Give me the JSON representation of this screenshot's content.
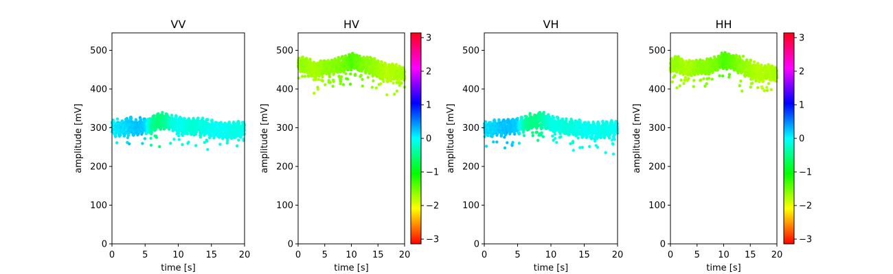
{
  "chart_data": [
    {
      "type": "scatter",
      "title": "VV",
      "xlabel": "time [s]",
      "ylabel": "amplitude [mV]",
      "xlim": [
        0,
        20
      ],
      "ylim": [
        0,
        545
      ],
      "xticks": [
        "0",
        "5",
        "10",
        "15",
        "20"
      ],
      "yticks": [
        "0",
        "100",
        "200",
        "300",
        "400",
        "500"
      ],
      "band": {
        "t": [
          0,
          1,
          2,
          3,
          4,
          5,
          6,
          7,
          8,
          9,
          10,
          11,
          12,
          13,
          14,
          15,
          16,
          17,
          18,
          19,
          20
        ],
        "center": [
          298,
          300,
          302,
          304,
          303,
          305,
          308,
          316,
          318,
          312,
          305,
          304,
          303,
          304,
          301,
          297,
          294,
          293,
          294,
          295,
          296
        ],
        "half_width": [
          18,
          20,
          20,
          21,
          19,
          20,
          18,
          20,
          19,
          18,
          22,
          20,
          19,
          18,
          20,
          22,
          20,
          19,
          20,
          19,
          18
        ],
        "phase": [
          0.05,
          0.1,
          0.15,
          0.2,
          0.25,
          0.2,
          -0.4,
          -0.55,
          -0.45,
          -0.15,
          -0.05,
          -0.1,
          -0.2,
          -0.15,
          -0.1,
          -0.05,
          -0.05,
          -0.05,
          -0.1,
          -0.1,
          -0.05
        ]
      },
      "colorbar": false
    },
    {
      "type": "scatter",
      "title": "HV",
      "xlabel": "time [s]",
      "ylabel": "amplitude [mV]",
      "xlim": [
        0,
        20
      ],
      "ylim": [
        0,
        545
      ],
      "xticks": [
        "0",
        "5",
        "10",
        "15",
        "20"
      ],
      "yticks": [
        "0",
        "100",
        "200",
        "300",
        "400",
        "500"
      ],
      "band": {
        "t": [
          0,
          1,
          2,
          3,
          4,
          5,
          6,
          7,
          8,
          9,
          10,
          11,
          12,
          13,
          14,
          15,
          16,
          17,
          18,
          19,
          20
        ],
        "center": [
          462,
          465,
          458,
          450,
          452,
          456,
          455,
          458,
          462,
          466,
          470,
          472,
          466,
          462,
          458,
          450,
          445,
          440,
          445,
          442,
          440
        ],
        "half_width": [
          15,
          18,
          18,
          20,
          18,
          16,
          17,
          18,
          18,
          17,
          20,
          18,
          18,
          20,
          22,
          20,
          22,
          20,
          18,
          16,
          14
        ],
        "phase": [
          -1.7,
          -1.65,
          -1.7,
          -1.75,
          -1.7,
          -1.65,
          -1.6,
          -1.6,
          -1.55,
          -1.5,
          -1.35,
          -1.45,
          -1.55,
          -1.6,
          -1.65,
          -1.7,
          -1.75,
          -1.8,
          -1.75,
          -1.75,
          -1.7
        ]
      },
      "colorbar": true,
      "colorbar_ticks": [
        "3",
        "2",
        "1",
        "0",
        "−1",
        "−2",
        "−3"
      ]
    },
    {
      "type": "scatter",
      "title": "VH",
      "xlabel": "time [s]",
      "ylabel": "amplitude [mV]",
      "xlim": [
        0,
        20
      ],
      "ylim": [
        0,
        545
      ],
      "xticks": [
        "0",
        "5",
        "10",
        "15",
        "20"
      ],
      "yticks": [
        "0",
        "100",
        "200",
        "300",
        "400",
        "500"
      ],
      "band": {
        "t": [
          0,
          1,
          2,
          3,
          4,
          5,
          6,
          7,
          8,
          9,
          10,
          11,
          12,
          13,
          14,
          15,
          16,
          17,
          18,
          19,
          20
        ],
        "center": [
          296,
          298,
          300,
          302,
          304,
          305,
          308,
          316,
          320,
          318,
          310,
          306,
          304,
          302,
          300,
          296,
          293,
          292,
          294,
          296,
          298
        ],
        "half_width": [
          16,
          18,
          19,
          20,
          18,
          19,
          18,
          19,
          19,
          18,
          20,
          19,
          18,
          19,
          20,
          21,
          20,
          19,
          20,
          19,
          18
        ],
        "phase": [
          0.1,
          0.15,
          0.2,
          0.25,
          0.25,
          0.2,
          -0.35,
          -0.5,
          -0.5,
          -0.3,
          -0.1,
          -0.1,
          -0.15,
          -0.15,
          -0.1,
          -0.05,
          -0.05,
          -0.05,
          -0.1,
          -0.05,
          -0.05
        ]
      },
      "colorbar": false
    },
    {
      "type": "scatter",
      "title": "HH",
      "xlabel": "time [s]",
      "ylabel": "amplitude [mV]",
      "xlim": [
        0,
        20
      ],
      "ylim": [
        0,
        545
      ],
      "xticks": [
        "0",
        "5",
        "10",
        "15",
        "20"
      ],
      "yticks": [
        "0",
        "100",
        "200",
        "300",
        "400",
        "500"
      ],
      "band": {
        "t": [
          0,
          1,
          2,
          3,
          4,
          5,
          6,
          7,
          8,
          9,
          10,
          11,
          12,
          13,
          14,
          15,
          16,
          17,
          18,
          19,
          20
        ],
        "center": [
          462,
          466,
          460,
          452,
          454,
          457,
          456,
          458,
          462,
          468,
          472,
          474,
          468,
          462,
          458,
          452,
          446,
          440,
          444,
          442,
          440
        ],
        "half_width": [
          15,
          18,
          18,
          20,
          18,
          16,
          17,
          18,
          18,
          17,
          20,
          18,
          18,
          20,
          22,
          20,
          22,
          20,
          18,
          16,
          14
        ],
        "phase": [
          -1.7,
          -1.65,
          -1.7,
          -1.75,
          -1.7,
          -1.65,
          -1.6,
          -1.6,
          -1.55,
          -1.5,
          -1.35,
          -1.4,
          -1.5,
          -1.6,
          -1.65,
          -1.7,
          -1.75,
          -1.8,
          -1.75,
          -1.75,
          -1.7
        ]
      },
      "colorbar": true,
      "colorbar_ticks": [
        "3",
        "2",
        "1",
        "0",
        "−1",
        "−2",
        "−3"
      ]
    }
  ]
}
